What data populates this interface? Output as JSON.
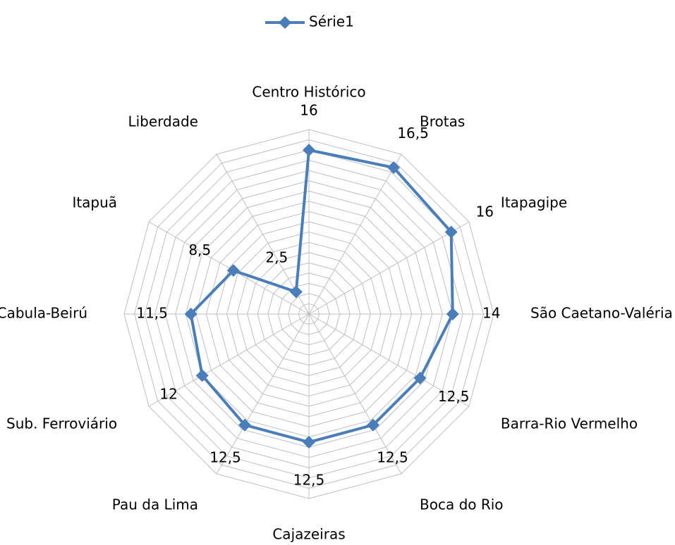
{
  "chart_data": {
    "type": "radar",
    "categories": [
      "Centro Histórico",
      "Brotas",
      "Itapagipe",
      "São Caetano-Valéria",
      "Barra-Rio Vermelho",
      "Boca do Rio",
      "Cajazeiras",
      "Pau da Lima",
      "Sub. Ferroviário",
      "Cabula-Beirú",
      "Itapuã",
      "Liberdade"
    ],
    "series": [
      {
        "name": "Série1",
        "color": "#4a7ebb",
        "values": [
          16,
          16.5,
          16,
          14,
          12.5,
          12.5,
          12.5,
          12.5,
          12,
          11.5,
          8.5,
          2.5
        ],
        "value_labels": [
          "16",
          "16,5",
          "16",
          "14",
          "12,5",
          "12,5",
          "12,5",
          "12,5",
          "12",
          "11,5",
          "8,5",
          "2,5"
        ]
      }
    ],
    "ylim": [
      0,
      18
    ],
    "yticks": [
      0,
      1,
      2,
      3,
      4,
      5,
      6,
      7,
      8,
      9,
      10,
      11,
      12,
      13,
      14,
      15,
      16,
      17,
      18
    ],
    "grid": true,
    "legend": "top"
  }
}
